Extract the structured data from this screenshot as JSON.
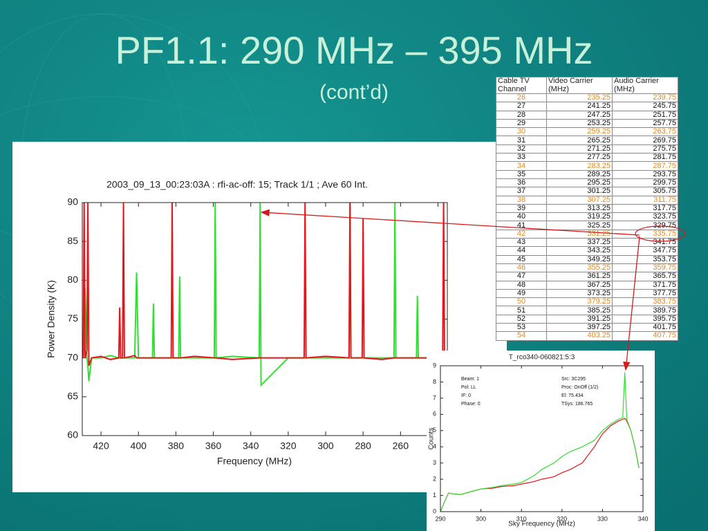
{
  "title": "PF1.1:  290 MHz – 395 MHz",
  "subtitle": "(cont’d)",
  "table": {
    "header": [
      "Cable TV Channel",
      "Video Carrier (MHz)",
      "Audio Carrier (MHz)"
    ],
    "rows": [
      [
        "26",
        "235.25",
        "239.75"
      ],
      [
        "27",
        "241.25",
        "245.75"
      ],
      [
        "28",
        "247.25",
        "251.75"
      ],
      [
        "29",
        "253.25",
        "257.75"
      ],
      [
        "30",
        "259.25",
        "263.75"
      ],
      [
        "31",
        "265.25",
        "269.75"
      ],
      [
        "32",
        "271.25",
        "275.75"
      ],
      [
        "33",
        "277.25",
        "281.75"
      ],
      [
        "34",
        "283.25",
        "287.75"
      ],
      [
        "35",
        "289.25",
        "293.75"
      ],
      [
        "36",
        "295.25",
        "299.75"
      ],
      [
        "37",
        "301.25",
        "305.75"
      ],
      [
        "38",
        "307.25",
        "311.75"
      ],
      [
        "39",
        "313.25",
        "317.75"
      ],
      [
        "40",
        "319.25",
        "323.75"
      ],
      [
        "41",
        "325.25",
        "329.75"
      ],
      [
        "42",
        "331.25",
        "335.75"
      ],
      [
        "43",
        "337.25",
        "341.75"
      ],
      [
        "44",
        "343.25",
        "347.75"
      ],
      [
        "45",
        "349.25",
        "353.75"
      ],
      [
        "46",
        "355.25",
        "359.75"
      ],
      [
        "47",
        "361.25",
        "365.75"
      ],
      [
        "48",
        "367.25",
        "371.75"
      ],
      [
        "49",
        "373.25",
        "377.75"
      ],
      [
        "50",
        "379.25",
        "383.75"
      ],
      [
        "51",
        "385.25",
        "389.75"
      ],
      [
        "52",
        "391.25",
        "395.75"
      ],
      [
        "53",
        "397.25",
        "401.75"
      ],
      [
        "54",
        "403.25",
        "407.75"
      ]
    ],
    "highlight_rows": [
      0,
      4,
      8,
      12,
      16,
      20,
      24,
      28
    ],
    "highlight_color": "#e8891c"
  },
  "chart_data": [
    {
      "type": "line",
      "title": "2003_09_13_00:23:03A : rfi-ac-off: 15; Track 1/1 ; Ave 60 Int.",
      "xlabel": "Frequency (MHz)",
      "ylabel": "Power Density (K)",
      "x": [
        429.5,
        429,
        428.5,
        427.5,
        427,
        426.5,
        425,
        420,
        415,
        410.5,
        410,
        409.5,
        408.5,
        408,
        407.5,
        402,
        401,
        400,
        392.5,
        392,
        391.5,
        382.5,
        382,
        381.5,
        378.5,
        378,
        377.5,
        370,
        359.5,
        359,
        358.5,
        350,
        335.5,
        335,
        334.5,
        320,
        311.5,
        311,
        310.5,
        300,
        287.5,
        287,
        286.5,
        280.5,
        280,
        279.5,
        270,
        263.5,
        263,
        262.5,
        251.5,
        251,
        250.5,
        237.5,
        237,
        236.5,
        235
      ],
      "series": [
        {
          "color": "#33dd33",
          "values": [
            70,
            72,
            79,
            70,
            69,
            67,
            70,
            70,
            70.3,
            70,
            70,
            70,
            70,
            70,
            70,
            70,
            81,
            70,
            70,
            77,
            70,
            70,
            70,
            70,
            70,
            80.5,
            70,
            70,
            70,
            90,
            70,
            70.2,
            70,
            90,
            66.5,
            70,
            70,
            70,
            70,
            70,
            70,
            90,
            70,
            70,
            70,
            70,
            70,
            70,
            90,
            70,
            70,
            78,
            70,
            70,
            70,
            70,
            70
          ]
        },
        {
          "color": "#e8141c",
          "values": [
            70,
            90,
            70,
            71,
            90,
            69,
            70,
            70.2,
            69.8,
            70,
            76.5,
            70,
            70,
            90,
            70,
            70.3,
            70,
            70,
            70,
            70,
            70,
            70,
            90,
            70,
            70,
            70,
            70,
            70.2,
            70,
            70,
            70,
            69.8,
            70,
            70,
            70,
            70,
            70,
            90,
            70,
            70.2,
            70,
            90,
            70,
            70,
            88,
            70,
            69.8,
            70,
            70,
            70,
            70,
            70,
            70,
            70,
            90,
            70,
            70
          ]
        }
      ],
      "xlim": [
        430,
        235
      ],
      "xticks": [
        420,
        400,
        380,
        360,
        340,
        320,
        300,
        280,
        260,
        240
      ],
      "ylim": [
        60,
        90
      ],
      "yticks": [
        60,
        65,
        70,
        75,
        80,
        85,
        90
      ]
    },
    {
      "type": "line",
      "title": "T_rco340-060821:5:3",
      "xlabel": "Sky Frequency (MHz)",
      "ylabel": "Counts",
      "annotations": [
        "Beam: 1",
        "Pol: LL",
        "IF: 0",
        "Phase: 0",
        "Src: 3C295",
        "Proc: OnOff (1/2)",
        "El:   75.434",
        "TSys:  186.765"
      ],
      "x": [
        290,
        291,
        292,
        293,
        295,
        297,
        300,
        303,
        305,
        308,
        310,
        313,
        315,
        318,
        320,
        322,
        325,
        328,
        330,
        332,
        334,
        335,
        335.5,
        336,
        337,
        338,
        339
      ],
      "series": [
        {
          "color": "#e8141c",
          "values": [
            0,
            0.6,
            1.15,
            1.1,
            1.05,
            1.2,
            1.4,
            1.45,
            1.55,
            1.6,
            1.7,
            1.85,
            2.0,
            2.15,
            2.4,
            2.6,
            3.0,
            4.0,
            4.8,
            5.3,
            5.6,
            5.7,
            5.75,
            5.6,
            5.0,
            4.0,
            2.7
          ]
        },
        {
          "color": "#33dd33",
          "values": [
            0,
            0.6,
            1.15,
            1.1,
            1.05,
            1.2,
            1.4,
            1.5,
            1.6,
            1.7,
            1.8,
            2.2,
            2.6,
            3.0,
            3.4,
            3.7,
            4.0,
            4.4,
            5.0,
            5.4,
            5.7,
            5.8,
            8.6,
            5.7,
            5.0,
            4.0,
            2.7
          ]
        }
      ],
      "xlim": [
        290,
        340
      ],
      "xticks": [
        290,
        300,
        310,
        320,
        330,
        340
      ],
      "ylim": [
        0,
        9
      ],
      "yticks": [
        0,
        1,
        2,
        3,
        4,
        5,
        6,
        7,
        8,
        9
      ]
    }
  ]
}
